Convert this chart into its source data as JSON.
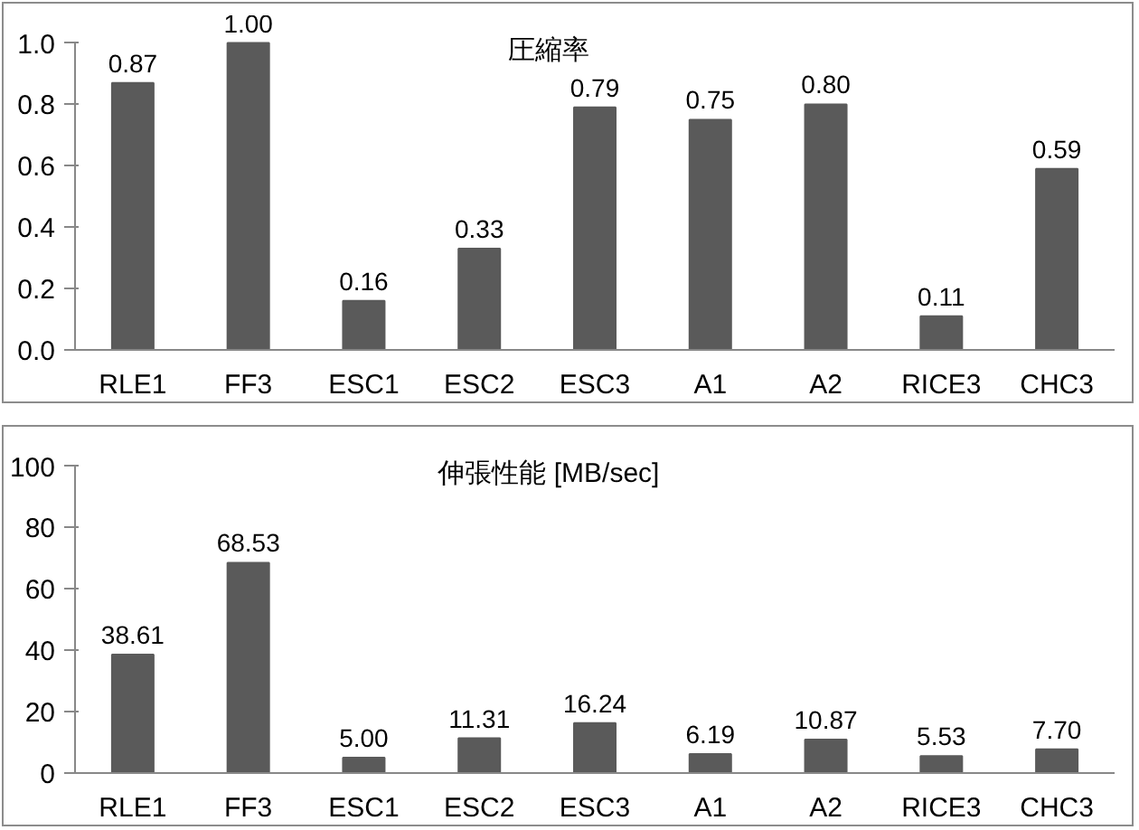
{
  "chart_data": [
    {
      "type": "bar",
      "title": "圧縮率",
      "categories": [
        "RLE1",
        "FF3",
        "ESC1",
        "ESC2",
        "ESC3",
        "A1",
        "A2",
        "RICE3",
        "CHC3"
      ],
      "values": [
        0.87,
        1.0,
        0.16,
        0.33,
        0.79,
        0.75,
        0.8,
        0.11,
        0.59
      ],
      "value_labels": [
        "0.87",
        "1.00",
        "0.16",
        "0.33",
        "0.79",
        "0.75",
        "0.80",
        "0.11",
        "0.59"
      ],
      "color": "#5a5a5a",
      "ylim": [
        0,
        1.0
      ],
      "yticks": [
        {
          "value": 0,
          "label": "0.0"
        },
        {
          "value": 0.2,
          "label": "0.2"
        },
        {
          "value": 0.4,
          "label": "0.4"
        },
        {
          "value": 0.6,
          "label": "0.6"
        },
        {
          "value": 0.8,
          "label": "0.8"
        },
        {
          "value": 1.0,
          "label": "1.0"
        }
      ],
      "grid": false
    },
    {
      "type": "bar",
      "title": "伸張性能 [MB/sec]",
      "categories": [
        "RLE1",
        "FF3",
        "ESC1",
        "ESC2",
        "ESC3",
        "A1",
        "A2",
        "RICE3",
        "CHC3"
      ],
      "values": [
        38.61,
        68.53,
        5.0,
        11.31,
        16.24,
        6.19,
        10.87,
        5.53,
        7.7
      ],
      "value_labels": [
        "38.61",
        "68.53",
        "5.00",
        "11.31",
        "16.24",
        "6.19",
        "10.87",
        "5.53",
        "7.70"
      ],
      "color": "#5a5a5a",
      "ylim": [
        0,
        100
      ],
      "yticks": [
        0,
        20,
        40,
        60,
        80,
        100
      ],
      "grid": false
    }
  ]
}
